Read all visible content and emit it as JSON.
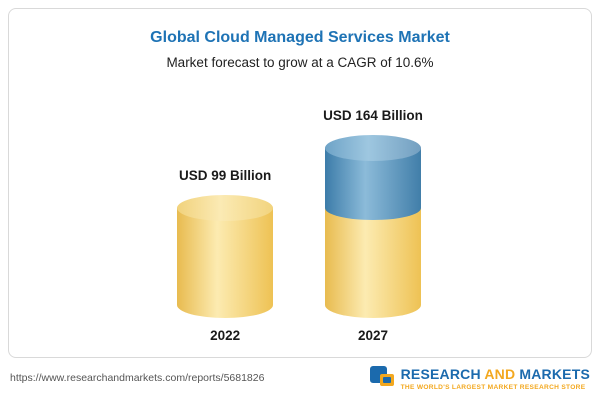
{
  "chart_data": {
    "type": "bar",
    "title": "Global Cloud Managed Services Market",
    "subtitle": "Market forecast to grow at a CAGR of 10.6%",
    "cagr": "10.6%",
    "unit": "USD Billion",
    "categories": [
      "2022",
      "2027"
    ],
    "values": [
      99,
      164
    ],
    "value_labels": [
      "USD 99 Billion",
      "USD 164 Billion"
    ],
    "colors": {
      "base_segment": "#f2cf6d",
      "growth_segment": "#4e87b0"
    },
    "legend_position": "none",
    "grid": false
  },
  "footer": {
    "url": "https://www.researchandmarkets.com/reports/5681826",
    "logo": {
      "research": "RESEARCH",
      "and": "AND",
      "markets": "MARKETS",
      "tagline": "THE WORLD'S LARGEST MARKET RESEARCH STORE"
    }
  }
}
